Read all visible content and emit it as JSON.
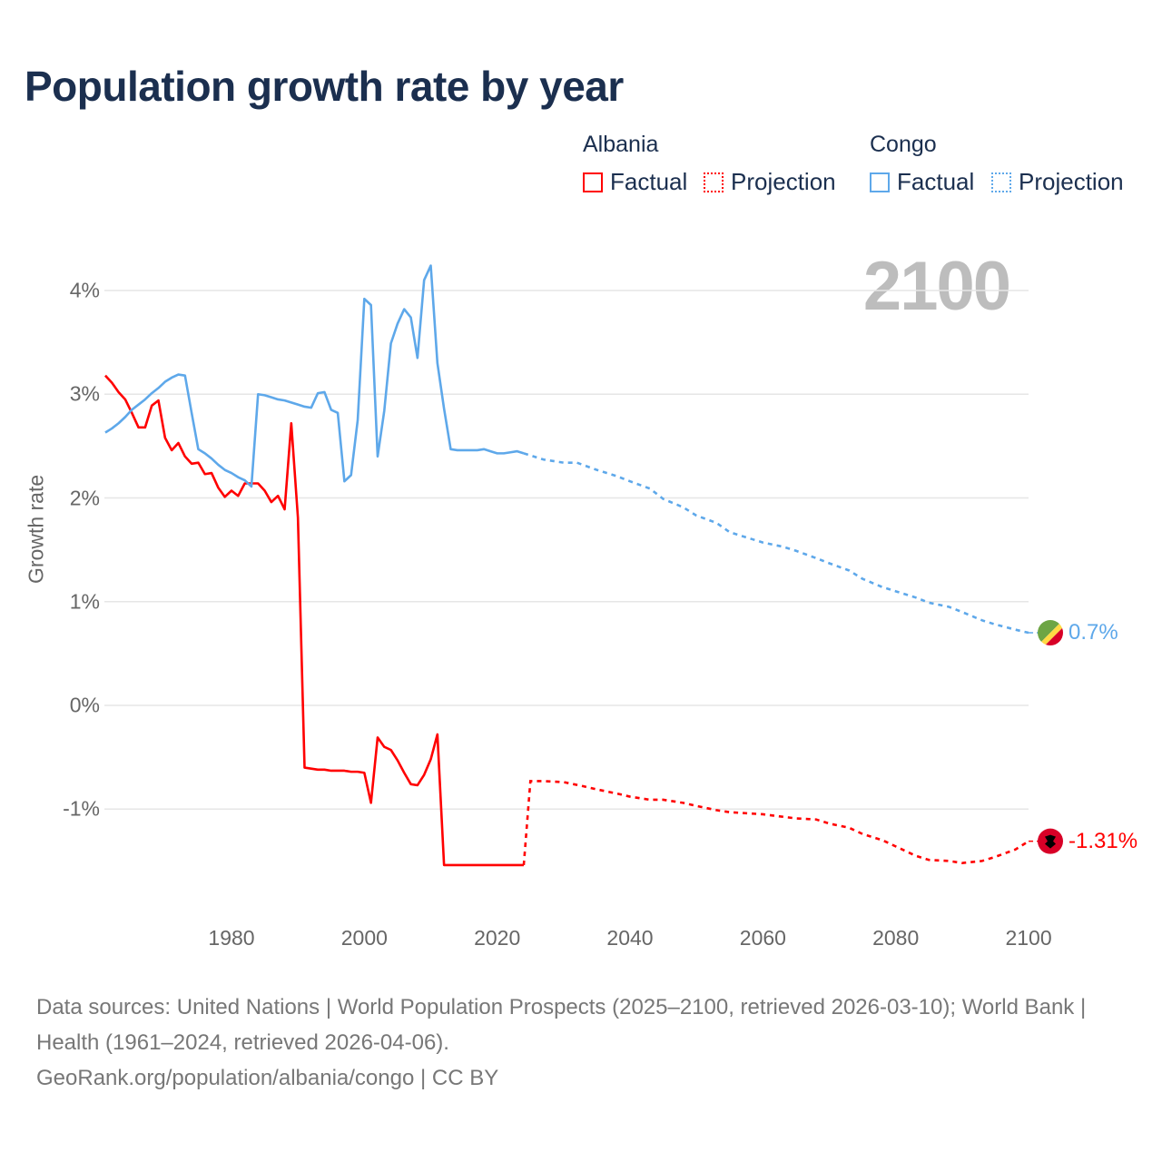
{
  "title": "Population growth rate by year",
  "year_display": "2100",
  "legend": {
    "groups": [
      {
        "name": "Albania",
        "color": "#ff0000",
        "factual_label": "Factual",
        "projection_label": "Projection"
      },
      {
        "name": "Congo",
        "color": "#5ea8ea",
        "factual_label": "Factual",
        "projection_label": "Projection"
      }
    ]
  },
  "end_labels": {
    "albania": "-1.31%",
    "congo": "0.7%"
  },
  "footer": {
    "sources": "Data sources: United Nations | World Population Prospects (2025–2100, retrieved 2026-03-10); World Bank | Health (1961–2024, retrieved 2026-04-06).",
    "credit": "GeoRank.org/population/albania/congo | CC BY"
  },
  "chart_data": {
    "type": "line",
    "title": "Population growth rate by year",
    "xlabel": "",
    "ylabel": "Growth rate",
    "xlim": [
      1961,
      2100
    ],
    "ylim": [
      -1.8,
      4.4
    ],
    "x_ticks": [
      1980,
      2000,
      2020,
      2040,
      2060,
      2080,
      2100
    ],
    "y_ticks": [
      {
        "v": 4,
        "label": "4%"
      },
      {
        "v": 3,
        "label": "3%"
      },
      {
        "v": 2,
        "label": "2%"
      },
      {
        "v": 1,
        "label": "1%"
      },
      {
        "v": 0,
        "label": "0%"
      },
      {
        "v": -1,
        "label": "-1%"
      }
    ],
    "grid": true,
    "series": [
      {
        "name": "Albania",
        "color": "#ff0000",
        "factual_start_year": 1961,
        "factual": [
          3.18,
          3.11,
          3.02,
          2.95,
          2.82,
          2.68,
          2.68,
          2.89,
          2.94,
          2.58,
          2.46,
          2.53,
          2.4,
          2.33,
          2.34,
          2.23,
          2.24,
          2.1,
          2.01,
          2.07,
          2.02,
          2.14,
          2.14,
          2.14,
          2.07,
          1.96,
          2.02,
          1.89,
          2.72,
          1.81,
          -0.6,
          -0.61,
          -0.62,
          -0.62,
          -0.63,
          -0.63,
          -0.63,
          -0.64,
          -0.64,
          -0.65,
          -0.94,
          -0.31,
          -0.4,
          -0.43,
          -0.53,
          -0.65,
          -0.76,
          -0.77,
          -0.67,
          -0.52,
          -0.28,
          -1.54,
          -1.54,
          -1.54,
          -1.54,
          -1.54,
          -1.54,
          -1.54,
          -1.54,
          -1.54,
          -1.54,
          -1.54,
          -1.54,
          -1.54
        ],
        "projection": [
          [
            2025,
            -0.73
          ],
          [
            2027,
            -0.73
          ],
          [
            2030,
            -0.74
          ],
          [
            2033,
            -0.78
          ],
          [
            2035,
            -0.81
          ],
          [
            2038,
            -0.85
          ],
          [
            2040,
            -0.88
          ],
          [
            2043,
            -0.91
          ],
          [
            2045,
            -0.91
          ],
          [
            2048,
            -0.94
          ],
          [
            2050,
            -0.97
          ],
          [
            2053,
            -1.01
          ],
          [
            2055,
            -1.03
          ],
          [
            2060,
            -1.05
          ],
          [
            2065,
            -1.09
          ],
          [
            2068,
            -1.1
          ],
          [
            2070,
            -1.14
          ],
          [
            2073,
            -1.18
          ],
          [
            2075,
            -1.24
          ],
          [
            2078,
            -1.3
          ],
          [
            2080,
            -1.36
          ],
          [
            2083,
            -1.45
          ],
          [
            2085,
            -1.49
          ],
          [
            2088,
            -1.5
          ],
          [
            2090,
            -1.52
          ],
          [
            2093,
            -1.5
          ],
          [
            2095,
            -1.46
          ],
          [
            2098,
            -1.39
          ],
          [
            2100,
            -1.31
          ]
        ]
      },
      {
        "name": "Congo",
        "color": "#5ea8ea",
        "factual_start_year": 1961,
        "factual": [
          2.63,
          2.67,
          2.72,
          2.78,
          2.85,
          2.9,
          2.95,
          3.01,
          3.06,
          3.12,
          3.16,
          3.19,
          3.18,
          2.82,
          2.47,
          2.43,
          2.38,
          2.32,
          2.27,
          2.24,
          2.2,
          2.17,
          2.11,
          3.0,
          2.99,
          2.97,
          2.95,
          2.94,
          2.92,
          2.9,
          2.88,
          2.87,
          3.01,
          3.02,
          2.85,
          2.82,
          2.16,
          2.22,
          2.75,
          3.92,
          3.86,
          2.4,
          2.84,
          3.49,
          3.68,
          3.82,
          3.74,
          3.35,
          4.1,
          4.24,
          3.3,
          2.86,
          2.47,
          2.46,
          2.46,
          2.46,
          2.46,
          2.47,
          2.45,
          2.43,
          2.43,
          2.44,
          2.45,
          2.43
        ],
        "projection": [
          [
            2025,
            2.41
          ],
          [
            2027,
            2.37
          ],
          [
            2030,
            2.34
          ],
          [
            2032,
            2.34
          ],
          [
            2035,
            2.27
          ],
          [
            2038,
            2.21
          ],
          [
            2040,
            2.16
          ],
          [
            2043,
            2.09
          ],
          [
            2045,
            1.99
          ],
          [
            2048,
            1.91
          ],
          [
            2050,
            1.83
          ],
          [
            2053,
            1.76
          ],
          [
            2055,
            1.67
          ],
          [
            2058,
            1.61
          ],
          [
            2060,
            1.57
          ],
          [
            2063,
            1.53
          ],
          [
            2065,
            1.49
          ],
          [
            2068,
            1.42
          ],
          [
            2070,
            1.37
          ],
          [
            2073,
            1.3
          ],
          [
            2075,
            1.22
          ],
          [
            2078,
            1.14
          ],
          [
            2080,
            1.1
          ],
          [
            2083,
            1.04
          ],
          [
            2085,
            0.99
          ],
          [
            2088,
            0.95
          ],
          [
            2090,
            0.9
          ],
          [
            2093,
            0.82
          ],
          [
            2095,
            0.78
          ],
          [
            2098,
            0.73
          ],
          [
            2100,
            0.7
          ]
        ]
      }
    ]
  }
}
